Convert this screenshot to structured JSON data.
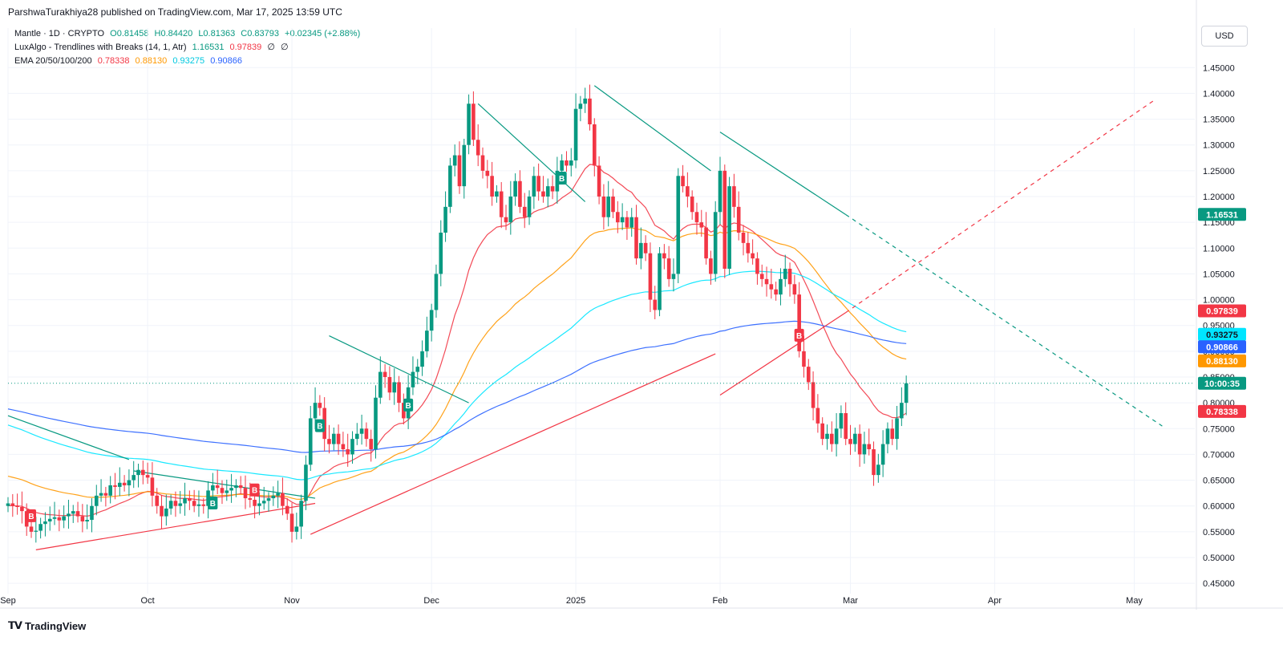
{
  "publisher": "ParshwaTurakhiya28 published on TradingView.com, Mar 17, 2025 13:59 UTC",
  "legend": {
    "symbol": "Mantle · 1D · CRYPTO",
    "o": "O0.81458",
    "h": "H0.84420",
    "l": "L0.81363",
    "c": "C0.83793",
    "change": "+0.02345 (+2.88%)",
    "indicator1_name": "LuxAlgo - Trendlines with Breaks (14, 1, Atr)",
    "indicator1_v1": "1.16531",
    "indicator1_v2": "0.97839",
    "indicator1_v3": "∅",
    "indicator1_v4": "∅",
    "indicator2_name": "EMA 20/50/100/200",
    "ema20": "0.78338",
    "ema50": "0.88130",
    "ema100": "0.93275",
    "ema200": "0.90866"
  },
  "currency_button": "USD",
  "footer_brand": "TradingView",
  "footer_icon": "tradingview-logo-icon",
  "colors": {
    "up": "#089981",
    "down": "#f23645",
    "ema20": "#f23645",
    "ema50": "#ff9800",
    "ema100": "#00e5ff",
    "ema200": "#2962ff",
    "trend_down": "#089981",
    "trend_up": "#f23645"
  },
  "price_badges": [
    {
      "label": "1.16531",
      "value": 1.16531,
      "bg": "#089981",
      "fg": "#ffffff"
    },
    {
      "label": "0.97839",
      "value": 0.97839,
      "bg": "#f23645",
      "fg": "#ffffff"
    },
    {
      "label": "0.93275",
      "value": 0.93275,
      "bg": "#00e5ff",
      "fg": "#131722"
    },
    {
      "label": "0.90866",
      "value": 0.90866,
      "bg": "#2962ff",
      "fg": "#ffffff"
    },
    {
      "label": "0.88130",
      "value": 0.8813,
      "bg": "#ff9800",
      "fg": "#ffffff"
    },
    {
      "label": "10:00:35",
      "value": 0.83793,
      "bg": "#089981",
      "fg": "#ffffff"
    },
    {
      "label": "0.78338",
      "value": 0.78338,
      "bg": "#f23645",
      "fg": "#ffffff"
    }
  ],
  "chart_data": {
    "type": "candlestick",
    "ylim": [
      0.43,
      1.48
    ],
    "y_ticks": [
      "0.45000",
      "0.50000",
      "0.55000",
      "0.60000",
      "0.65000",
      "0.70000",
      "0.75000",
      "0.80000",
      "0.85000",
      "0.90000",
      "0.95000",
      "1.00000",
      "1.05000",
      "1.10000",
      "1.15000",
      "1.20000",
      "1.25000",
      "1.30000",
      "1.35000",
      "1.40000",
      "1.45000"
    ],
    "x_ticks": [
      {
        "label": "Sep",
        "day": 0
      },
      {
        "label": "Oct",
        "day": 30
      },
      {
        "label": "Nov",
        "day": 61
      },
      {
        "label": "Dec",
        "day": 91
      },
      {
        "label": "2025",
        "day": 122
      },
      {
        "label": "Feb",
        "day": 153
      },
      {
        "label": "Mar",
        "day": 181
      },
      {
        "label": "Apr",
        "day": 212
      },
      {
        "label": "May",
        "day": 242
      }
    ],
    "x_range_days": [
      0,
      255
    ],
    "last_price": 0.83793,
    "close": [
      0.605,
      0.6,
      0.598,
      0.59,
      0.56,
      0.55,
      0.552,
      0.565,
      0.57,
      0.575,
      0.578,
      0.572,
      0.58,
      0.585,
      0.59,
      0.58,
      0.57,
      0.573,
      0.6,
      0.62,
      0.625,
      0.62,
      0.64,
      0.637,
      0.645,
      0.64,
      0.65,
      0.66,
      0.67,
      0.66,
      0.655,
      0.62,
      0.6,
      0.58,
      0.595,
      0.61,
      0.6,
      0.605,
      0.615,
      0.61,
      0.6,
      0.603,
      0.6,
      0.63,
      0.64,
      0.635,
      0.625,
      0.63,
      0.635,
      0.64,
      0.635,
      0.615,
      0.612,
      0.6,
      0.605,
      0.61,
      0.615,
      0.62,
      0.625,
      0.6,
      0.585,
      0.55,
      0.56,
      0.61,
      0.68,
      0.77,
      0.8,
      0.79,
      0.73,
      0.72,
      0.74,
      0.72,
      0.71,
      0.7,
      0.73,
      0.74,
      0.75,
      0.73,
      0.71,
      0.81,
      0.86,
      0.85,
      0.82,
      0.84,
      0.8,
      0.77,
      0.83,
      0.86,
      0.87,
      0.9,
      0.94,
      0.98,
      1.05,
      1.13,
      1.18,
      1.26,
      1.28,
      1.22,
      1.3,
      1.38,
      1.31,
      1.28,
      1.25,
      1.24,
      1.2,
      1.21,
      1.16,
      1.15,
      1.2,
      1.23,
      1.18,
      1.16,
      1.2,
      1.24,
      1.21,
      1.2,
      1.22,
      1.21,
      1.25,
      1.27,
      1.26,
      1.27,
      1.37,
      1.38,
      1.39,
      1.34,
      1.26,
      1.2,
      1.16,
      1.2,
      1.17,
      1.15,
      1.16,
      1.14,
      1.16,
      1.08,
      1.11,
      1.09,
      1.0,
      0.98,
      1.09,
      1.08,
      1.04,
      1.05,
      1.24,
      1.22,
      1.2,
      1.17,
      1.15,
      1.14,
      1.08,
      1.05,
      1.17,
      1.25,
      1.06,
      1.22,
      1.18,
      1.13,
      1.11,
      1.09,
      1.08,
      1.05,
      1.04,
      1.03,
      1.02,
      1.01,
      1.04,
      1.06,
      1.03,
      1.01,
      0.9,
      0.87,
      0.84,
      0.79,
      0.76,
      0.73,
      0.74,
      0.72,
      0.75,
      0.78,
      0.73,
      0.72,
      0.74,
      0.7,
      0.72,
      0.71,
      0.66,
      0.68,
      0.72,
      0.75,
      0.73,
      0.77,
      0.8,
      0.83793
    ],
    "ema_values_note": "EMA lines computed from close series",
    "trendlines_down": [
      {
        "from": [
          0,
          0.775
        ],
        "to": [
          26,
          0.69
        ]
      },
      {
        "from": [
          27,
          0.668
        ],
        "to": [
          66,
          0.615
        ]
      },
      {
        "from": [
          69,
          0.93
        ],
        "to": [
          99,
          0.8
        ]
      },
      {
        "from": [
          101,
          1.38
        ],
        "to": [
          124,
          1.19
        ]
      },
      {
        "from": [
          126,
          1.415
        ],
        "to": [
          151,
          1.25
        ]
      },
      {
        "from": [
          153,
          1.325
        ],
        "to": [
          180,
          1.165
        ]
      },
      {
        "from": [
          180,
          1.165
        ],
        "to": [
          248,
          0.755
        ],
        "dashed": true
      }
    ],
    "trendlines_up": [
      {
        "from": [
          6,
          0.515
        ],
        "to": [
          66,
          0.605
        ]
      },
      {
        "from": [
          65,
          0.545
        ],
        "to": [
          152,
          0.895
        ]
      },
      {
        "from": [
          153,
          0.815
        ],
        "to": [
          180,
          0.975
        ]
      },
      {
        "from": [
          180,
          0.975
        ],
        "to": [
          246,
          1.385
        ],
        "dashed": true
      }
    ],
    "break_markers": [
      {
        "day": 5,
        "type": "sell",
        "label": "B"
      },
      {
        "day": 44,
        "type": "buy",
        "label": "B"
      },
      {
        "day": 53,
        "type": "sell",
        "label": "B"
      },
      {
        "day": 67,
        "type": "buy",
        "label": "B"
      },
      {
        "day": 86,
        "type": "buy",
        "label": "B"
      },
      {
        "day": 119,
        "type": "buy",
        "label": "B"
      },
      {
        "day": 170,
        "type": "sell",
        "label": "B"
      }
    ]
  }
}
